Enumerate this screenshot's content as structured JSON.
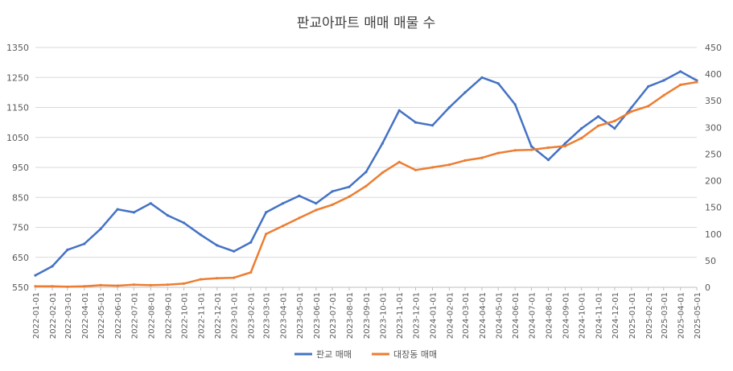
{
  "chart_data": {
    "type": "line",
    "title": "판교아파트 매매 매물 수",
    "xlabel": "",
    "ylabel": "",
    "y_left": {
      "min": 550,
      "max": 1350,
      "ticks": [
        550,
        650,
        750,
        850,
        950,
        1050,
        1150,
        1250,
        1350
      ]
    },
    "y_right": {
      "min": 0,
      "max": 450,
      "ticks": [
        0,
        50,
        100,
        150,
        200,
        250,
        300,
        350,
        400,
        450
      ]
    },
    "grid": "horizontal",
    "legend_position": "bottom",
    "x_ticks": [
      "2022-01-01",
      "2022-02-01",
      "2022-03-01",
      "2022-04-01",
      "2022-05-01",
      "2022-06-01",
      "2022-07-01",
      "2022-08-01",
      "2022-09-01",
      "2022-10-01",
      "2022-11-01",
      "2022-12-01",
      "2023-01-01",
      "2023-02-01",
      "2023-03-01",
      "2023-04-01",
      "2023-05-01",
      "2023-06-01",
      "2023-07-01",
      "2023-08-01",
      "2023-09-01",
      "2023-10-01",
      "2023-11-01",
      "2023-12-01",
      "2024-01-01",
      "2024-02-01",
      "2024-03-01",
      "2024-04-01",
      "2024-05-01",
      "2024-06-01",
      "2024-07-01",
      "2024-08-01",
      "2024-09-01",
      "2024-10-01",
      "2024-11-01",
      "2024-12-01",
      "2025-01-01",
      "2025-02-01",
      "2025-03-01",
      "2025-04-01",
      "2025-05-01"
    ],
    "series": [
      {
        "name": "판교 매매",
        "color": "#4472c4",
        "axis": "left",
        "x": [
          "2022-01-01",
          "2022-02-01",
          "2022-03-01",
          "2022-04-01",
          "2022-05-01",
          "2022-06-01",
          "2022-07-01",
          "2022-08-01",
          "2022-09-01",
          "2022-10-01",
          "2022-11-01",
          "2022-12-01",
          "2023-01-01",
          "2023-02-01",
          "2023-03-01",
          "2023-04-01",
          "2023-05-01",
          "2023-06-01",
          "2023-07-01",
          "2023-08-01",
          "2023-09-01",
          "2023-10-01",
          "2023-11-01",
          "2023-12-01",
          "2024-01-01",
          "2024-02-01",
          "2024-03-01",
          "2024-04-01",
          "2024-05-01",
          "2024-06-01",
          "2024-07-01",
          "2024-08-01",
          "2024-09-01",
          "2024-10-01",
          "2024-11-01",
          "2024-12-01",
          "2025-01-01",
          "2025-02-01",
          "2025-03-01",
          "2025-04-01",
          "2025-05-01"
        ],
        "values": [
          590,
          620,
          675,
          695,
          745,
          810,
          800,
          830,
          790,
          765,
          725,
          690,
          670,
          700,
          800,
          830,
          855,
          830,
          870,
          885,
          935,
          1030,
          1140,
          1100,
          1090,
          1150,
          1200,
          1250,
          1230,
          1160,
          1020,
          975,
          1030,
          1080,
          1120,
          1080,
          1150,
          1220,
          1240,
          1270,
          1240
        ]
      },
      {
        "name": "대장동 매매",
        "color": "#ed7d31",
        "axis": "right",
        "x": [
          "2022-01-01",
          "2022-02-01",
          "2022-03-01",
          "2022-04-01",
          "2022-05-01",
          "2022-06-01",
          "2022-07-01",
          "2022-08-01",
          "2022-09-01",
          "2022-10-01",
          "2022-11-01",
          "2022-12-01",
          "2023-01-01",
          "2023-02-01",
          "2023-03-01",
          "2023-04-01",
          "2023-05-01",
          "2023-06-01",
          "2023-07-01",
          "2023-08-01",
          "2023-09-01",
          "2023-10-01",
          "2023-11-01",
          "2023-12-01",
          "2024-01-01",
          "2024-02-01",
          "2024-03-01",
          "2024-04-01",
          "2024-05-01",
          "2024-06-01",
          "2024-07-01",
          "2024-08-01",
          "2024-09-01",
          "2024-10-01",
          "2024-11-01",
          "2024-12-01",
          "2025-01-01",
          "2025-02-01",
          "2025-03-01",
          "2025-04-01",
          "2025-05-01"
        ],
        "values": [
          2,
          2,
          1,
          2,
          4,
          3,
          5,
          4,
          5,
          7,
          15,
          17,
          18,
          28,
          100,
          115,
          130,
          145,
          155,
          170,
          190,
          215,
          235,
          220,
          225,
          230,
          238,
          243,
          252,
          257,
          258,
          262,
          265,
          280,
          303,
          312,
          330,
          340,
          360,
          380,
          385
        ]
      }
    ]
  }
}
